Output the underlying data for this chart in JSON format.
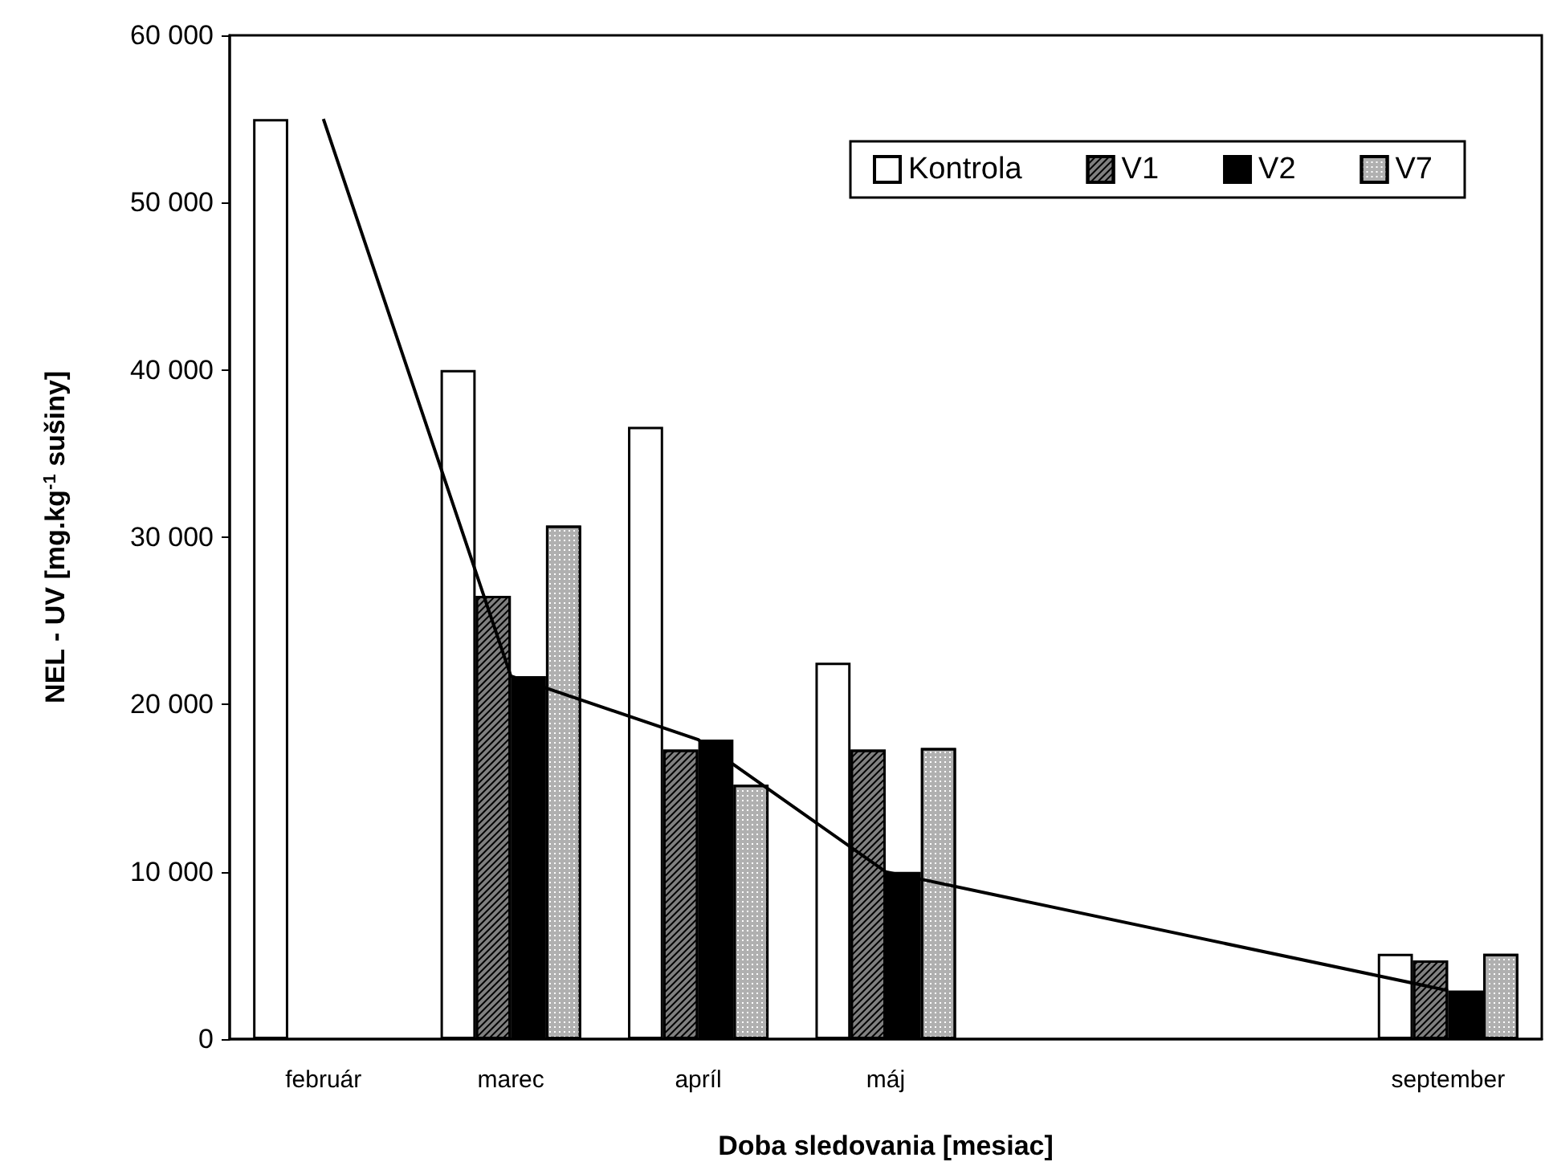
{
  "chart_data": {
    "type": "bar",
    "xlabel": "Doba sledovania [mesiac]",
    "ylabel": "NEL - UV [mg.kg$^{-1}$ sušiny]",
    "categories": [
      "február",
      "marec",
      "apríl",
      "máj",
      null,
      null,
      "september"
    ],
    "series": [
      {
        "name": "Kontrola",
        "color": "#ffffff",
        "values": [
          55000,
          40000,
          36600,
          22500,
          null,
          null,
          5100
        ]
      },
      {
        "name": "V1",
        "color": "#808080",
        "values": [
          null,
          26500,
          17300,
          17300,
          null,
          null,
          4700
        ]
      },
      {
        "name": "V2",
        "color": "#000000",
        "values": [
          null,
          21700,
          17900,
          10000,
          null,
          null,
          2900
        ]
      },
      {
        "name": "V7",
        "color": "#b0b0b0",
        "values": [
          null,
          30700,
          15200,
          17400,
          null,
          null,
          5100
        ]
      },
      {
        "type": "line",
        "color": "#000000",
        "x": [
          "február",
          "marec",
          "apríl",
          "máj",
          "september"
        ],
        "values": [
          55000,
          21700,
          17900,
          10000,
          2900
        ]
      }
    ],
    "ylim": [
      0,
      60000
    ],
    "yticks": [
      {
        "value": 0,
        "label": "0"
      },
      {
        "value": 10000,
        "label": "10 000"
      },
      {
        "value": 20000,
        "label": "20 000"
      },
      {
        "value": 30000,
        "label": "30 000"
      },
      {
        "value": 40000,
        "label": "40 000"
      },
      {
        "value": 50000,
        "label": "50 000"
      },
      {
        "value": 60000,
        "label": "60 000"
      }
    ],
    "grid": false,
    "legend": "top right",
    "marker": "none",
    "line_style": "solid"
  }
}
